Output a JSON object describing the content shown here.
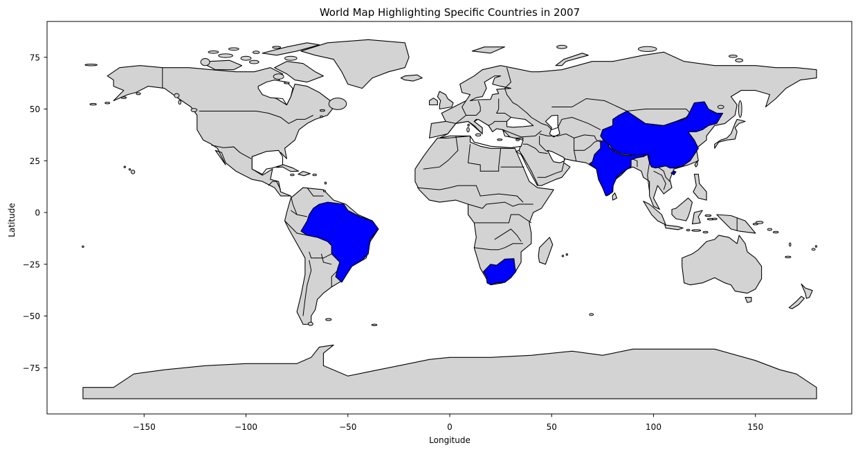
{
  "chart_data": {
    "type": "map",
    "title": "World Map Highlighting Specific Countries in 2007",
    "xlabel": "Longitude",
    "ylabel": "Latitude",
    "xlim": [
      -198,
      198
    ],
    "ylim": [
      -99,
      92
    ],
    "xticks": [
      -150,
      -100,
      -50,
      0,
      50,
      100,
      150
    ],
    "yticks": [
      -75,
      -50,
      -25,
      0,
      25,
      50,
      75
    ],
    "base_color": "#d3d3d3",
    "highlight_color": "#0000ff",
    "edge_color": "#000000",
    "highlighted_countries": [
      "Brazil",
      "South Africa",
      "India",
      "China"
    ]
  }
}
